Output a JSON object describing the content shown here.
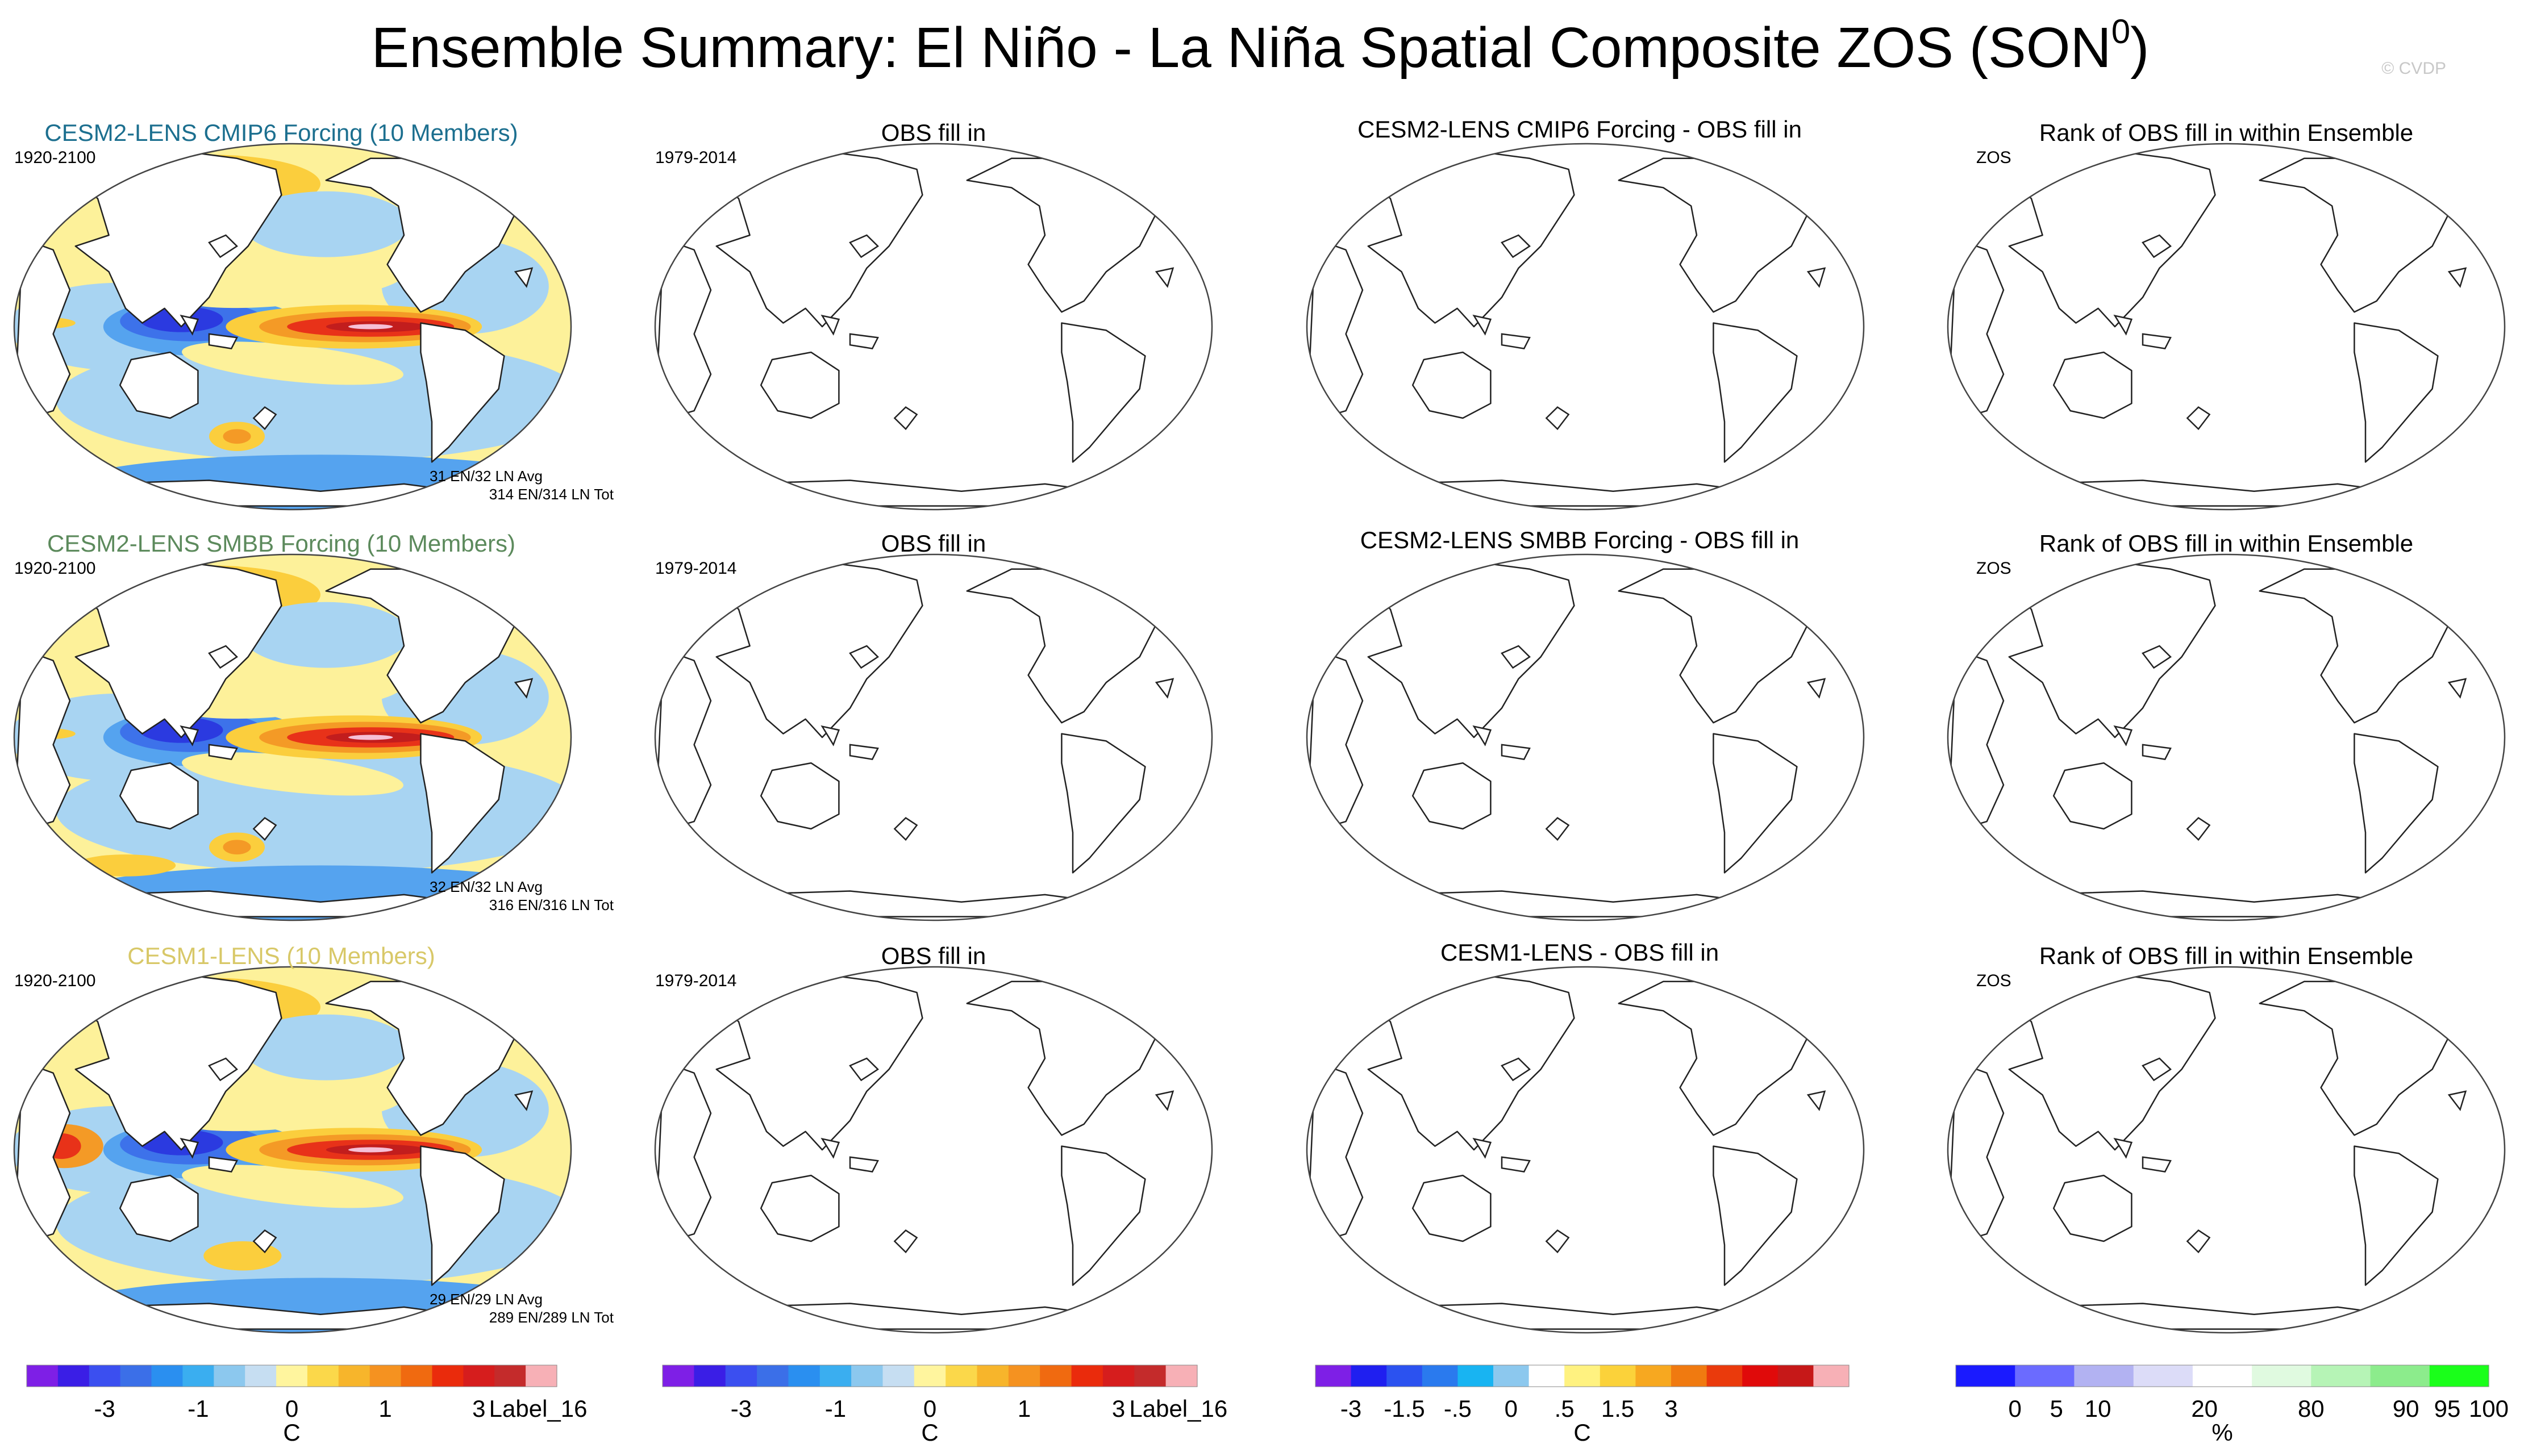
{
  "figure": {
    "title": "Ensemble Summary: El Niño - La Niña Spatial Composite ZOS (SON",
    "title_superscript": "0",
    "title_close": ")",
    "watermark": "© CVDP"
  },
  "chart_data": {
    "type": "heatmap",
    "colors": {
      "cesm2_cmip6": "#1c6f8f",
      "cesm2_smbb": "#5c8a5c",
      "cesm1": "#d8c868",
      "coast": "#222222",
      "frame": "#444444"
    },
    "rows": [
      {
        "panels": [
          {
            "kind": "model",
            "title": "CESM2-LENS CMIP6 Forcing (10 Members)",
            "title_color": "cesm2_cmip6",
            "left_label": "1920-2100",
            "stats": [
              "31 EN/32 LN Avg",
              "314 EN/314 LN Tot"
            ],
            "filled": true,
            "variant": 0
          },
          {
            "kind": "blank",
            "title": "OBS fill in",
            "left_label": "1979-2014"
          },
          {
            "kind": "blank",
            "title": "CESM2-LENS CMIP6 Forcing - OBS fill in",
            "left_label": ""
          },
          {
            "kind": "blank",
            "title": "Rank of OBS fill in within Ensemble",
            "left_label": "ZOS"
          }
        ]
      },
      {
        "panels": [
          {
            "kind": "model",
            "title": "CESM2-LENS SMBB Forcing (10 Members)",
            "title_color": "cesm2_smbb",
            "left_label": "1920-2100",
            "stats": [
              "32 EN/32 LN Avg",
              "316 EN/316 LN Tot"
            ],
            "filled": true,
            "variant": 1
          },
          {
            "kind": "blank",
            "title": "OBS fill in",
            "left_label": "1979-2014"
          },
          {
            "kind": "blank",
            "title": "CESM2-LENS SMBB Forcing - OBS fill in",
            "left_label": ""
          },
          {
            "kind": "blank",
            "title": "Rank of OBS fill in within Ensemble",
            "left_label": "ZOS"
          }
        ]
      },
      {
        "panels": [
          {
            "kind": "model",
            "title": "CESM1-LENS (10 Members)",
            "title_color": "cesm1",
            "left_label": "1920-2100",
            "stats": [
              "29 EN/29 LN Avg",
              "289 EN/289 LN Tot"
            ],
            "filled": true,
            "variant": 2
          },
          {
            "kind": "blank",
            "title": "OBS fill in",
            "left_label": "1979-2014"
          },
          {
            "kind": "blank",
            "title": "CESM1-LENS - OBS fill in",
            "left_label": ""
          },
          {
            "kind": "blank",
            "title": "Rank of OBS fill in within Ensemble",
            "left_label": "ZOS"
          }
        ]
      }
    ],
    "colorbars": [
      {
        "name": "composite-colorbar-1",
        "colors": [
          "#7e1fe6",
          "#3a1ee6",
          "#3b4ff0",
          "#3b6fe8",
          "#2a8ff0",
          "#3aaef0",
          "#8cc8ee",
          "#c6def2",
          "#fff59e",
          "#fbd84a",
          "#f7b52b",
          "#f59220",
          "#f06a10",
          "#ea2b0c",
          "#d61d1d",
          "#c42b2b",
          "#f7b0b6"
        ],
        "tick_labels": [
          {
            "label": "-3",
            "boundary": 2.5
          },
          {
            "label": "-1",
            "boundary": 5.5
          },
          {
            "label": "0",
            "boundary": 8.5
          },
          {
            "label": "1",
            "boundary": 11.5
          },
          {
            "label": "3",
            "boundary": 14.5
          },
          {
            "label": "Label_16",
            "boundary": 16.4
          }
        ],
        "unit": "C"
      },
      {
        "name": "composite-colorbar-2",
        "colors": [
          "#7e1fe6",
          "#3a1ee6",
          "#3b4ff0",
          "#3b6fe8",
          "#2a8ff0",
          "#3aaef0",
          "#8cc8ee",
          "#c6def2",
          "#fff59e",
          "#fbd84a",
          "#f7b52b",
          "#f59220",
          "#f06a10",
          "#ea2b0c",
          "#d61d1d",
          "#c42b2b",
          "#f7b0b6"
        ],
        "tick_labels": [
          {
            "label": "-3",
            "boundary": 2.5
          },
          {
            "label": "-1",
            "boundary": 5.5
          },
          {
            "label": "0",
            "boundary": 8.5
          },
          {
            "label": "1",
            "boundary": 11.5
          },
          {
            "label": "3",
            "boundary": 14.5
          },
          {
            "label": "Label_16",
            "boundary": 16.4
          }
        ],
        "unit": "C"
      },
      {
        "name": "difference-colorbar",
        "colors": [
          "#7e1fe6",
          "#1f1ff0",
          "#2b52f0",
          "#2a7aee",
          "#18b4f2",
          "#8cc8ee",
          "#ffffff",
          "#fff280",
          "#fbd23a",
          "#f7a820",
          "#f07a10",
          "#ea3a0c",
          "#e00a0a",
          "#c61818",
          "#f7b0b6"
        ],
        "tick_labels": [
          {
            "label": "-3",
            "boundary": 1
          },
          {
            "label": "-1.5",
            "boundary": 2.5
          },
          {
            "label": "-.5",
            "boundary": 4
          },
          {
            "label": "0",
            "boundary": 5.5
          },
          {
            "label": ".5",
            "boundary": 7
          },
          {
            "label": "1.5",
            "boundary": 8.5
          },
          {
            "label": "3",
            "boundary": 10
          }
        ],
        "unit": "C"
      },
      {
        "name": "rank-colorbar",
        "colors": [
          "#1a1aff",
          "#6b6bff",
          "#b2b2f2",
          "#dcdcf8",
          "#ffffff",
          "#e0fae0",
          "#b6f4b6",
          "#8cec8c",
          "#1aff1a"
        ],
        "tick_labels": [
          {
            "label": "0",
            "boundary": 1
          },
          {
            "label": "5",
            "boundary": 1.7
          },
          {
            "label": "10",
            "boundary": 2.4
          },
          {
            "label": "20",
            "boundary": 4.2
          },
          {
            "label": "80",
            "boundary": 6
          },
          {
            "label": "90",
            "boundary": 7.6
          },
          {
            "label": "95",
            "boundary": 8.3
          },
          {
            "label": "100",
            "boundary": 9
          }
        ],
        "unit": "%"
      }
    ]
  }
}
